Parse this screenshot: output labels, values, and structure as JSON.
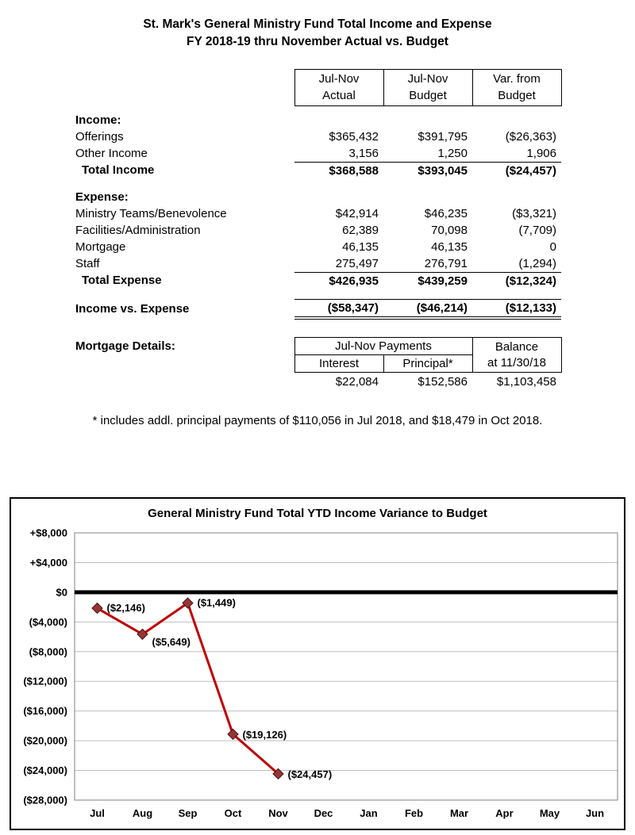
{
  "report": {
    "title_line1": "St. Mark's General Ministry Fund Total Income and Expense",
    "title_line2": "FY 2018-19 thru November Actual vs. Budget",
    "columns": [
      [
        "Jul-Nov",
        "Actual"
      ],
      [
        "Jul-Nov",
        "Budget"
      ],
      [
        "Var. from",
        "Budget"
      ]
    ],
    "sections": [
      {
        "header": "Income:",
        "rows": [
          {
            "label": "Offerings",
            "values": [
              "$365,432",
              "$391,795",
              "($26,363)"
            ]
          },
          {
            "label": "Other Income",
            "values": [
              "3,156",
              "1,250",
              "1,906"
            ],
            "underline": true
          },
          {
            "label": "Total Income",
            "values": [
              "$368,588",
              "$393,045",
              "($24,457)"
            ],
            "bold": true,
            "indent": true
          }
        ]
      },
      {
        "header": "Expense:",
        "rows": [
          {
            "label": "Ministry Teams/Benevolence",
            "values": [
              "$42,914",
              "$46,235",
              "($3,321)"
            ]
          },
          {
            "label": "Facilities/Administration",
            "values": [
              "62,389",
              "70,098",
              "(7,709)"
            ]
          },
          {
            "label": "Mortgage",
            "values": [
              "46,135",
              "46,135",
              "0"
            ]
          },
          {
            "label": "Staff",
            "values": [
              "275,497",
              "276,791",
              "(1,294)"
            ],
            "underline": true
          },
          {
            "label": "Total Expense",
            "values": [
              "$426,935",
              "$439,259",
              "($12,324)"
            ],
            "bold": true,
            "indent": true
          }
        ]
      }
    ],
    "net_row": {
      "label": "Income vs. Expense",
      "values": [
        "($58,347)",
        "($46,214)",
        "($12,133)"
      ]
    },
    "mortgage": {
      "label": "Mortgage Details:",
      "payments_header": "Jul-Nov Payments",
      "interest_header": "Interest",
      "principal_header": "Principal*",
      "balance_line1": "Balance",
      "balance_line2": "at 11/30/18",
      "values": [
        "$22,084",
        "$152,586",
        "$1,103,458"
      ]
    },
    "footnote": "* includes addl. principal payments of $110,056 in Jul 2018, and $18,479 in Oct 2018."
  },
  "chart_data": {
    "type": "line",
    "title": "General Ministry Fund Total YTD Income Variance to Budget",
    "categories": [
      "Jul",
      "Aug",
      "Sep",
      "Oct",
      "Nov",
      "Dec",
      "Jan",
      "Feb",
      "Mar",
      "Apr",
      "May",
      "Jun"
    ],
    "values": [
      -2146,
      -5649,
      -1449,
      -19126,
      -24457,
      null,
      null,
      null,
      null,
      null,
      null,
      null
    ],
    "point_labels": [
      "($2,146)",
      "($5,649)",
      "($1,449)",
      "($19,126)",
      "($24,457)"
    ],
    "y_ticks": [
      8000,
      4000,
      0,
      -4000,
      -8000,
      -12000,
      -16000,
      -20000,
      -24000,
      -28000
    ],
    "y_tick_labels": [
      "+$8,000",
      "+$4,000",
      "$0",
      "($4,000)",
      "($8,000)",
      "($12,000)",
      "($16,000)",
      "($20,000)",
      "($24,000)",
      "($28,000)"
    ],
    "ylim": [
      -28000,
      8000
    ],
    "grid": true,
    "legend": "none",
    "line_color": "#c00000",
    "marker_color": "#953735",
    "marker_edge_color": "#4a1210",
    "zero_line_color": "#000000",
    "grid_color": "#bfbfbf"
  }
}
